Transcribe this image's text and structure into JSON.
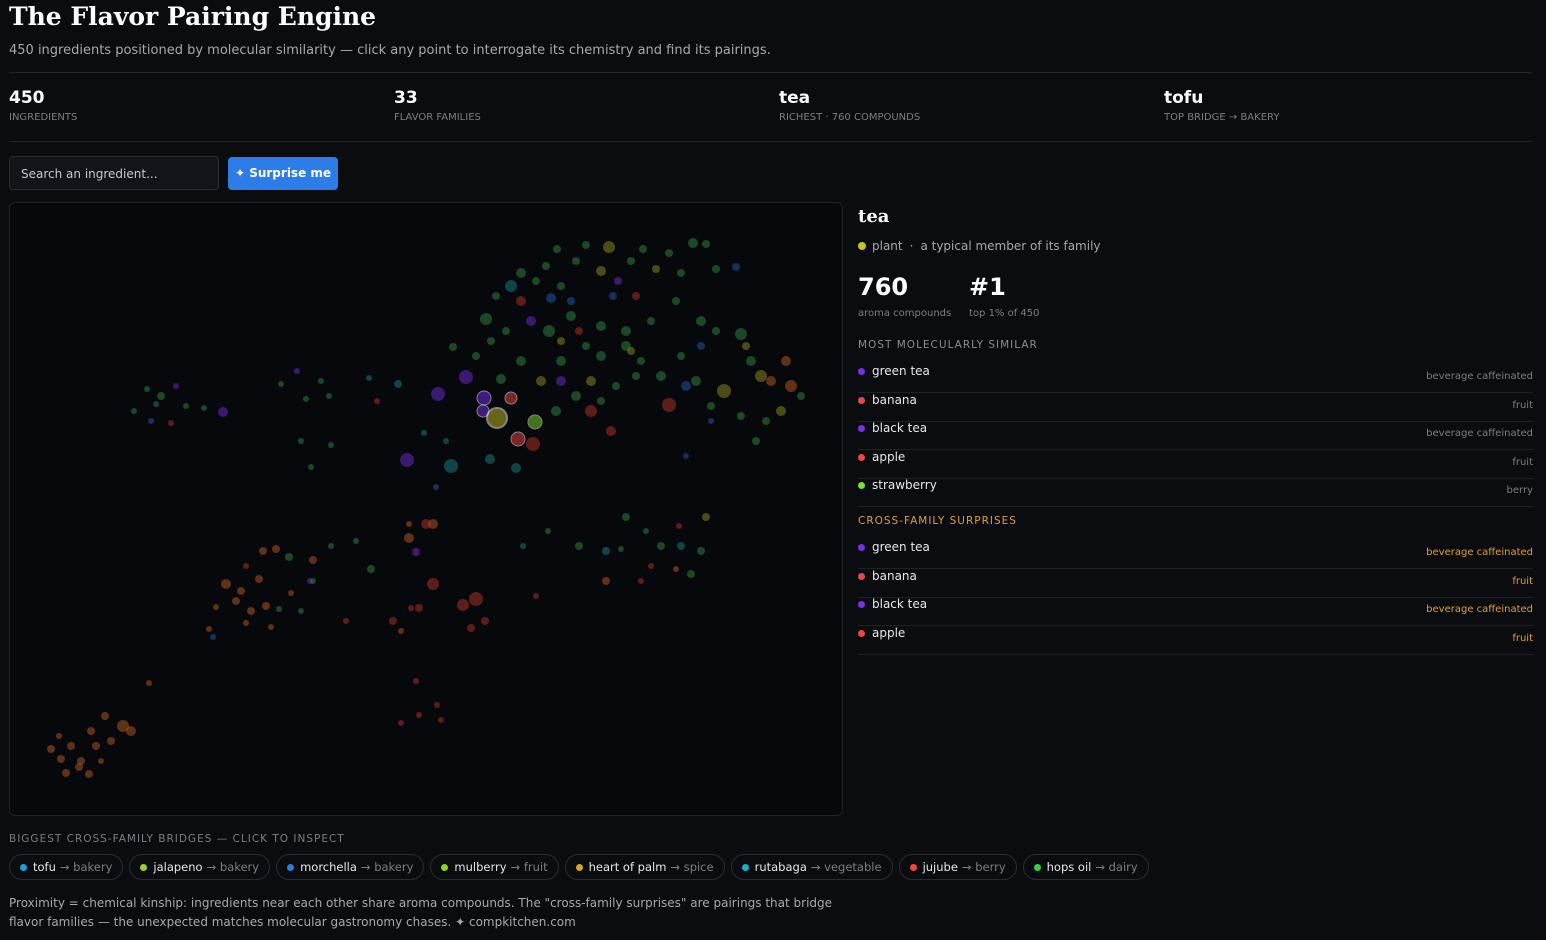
{
  "header": {
    "title": "The Flavor Pairing Engine",
    "subtitle": "450 ingredients positioned by molecular similarity — click any point to interrogate its chemistry and find its pairings."
  },
  "stats": [
    {
      "value": 450,
      "label": "INGREDIENTS"
    },
    {
      "value": 33,
      "label": "FLAVOR FAMILIES"
    },
    {
      "value": "tea",
      "label": "RICHEST · 760 COMPOUNDS"
    },
    {
      "value": "tofu",
      "label": "TOP BRIDGE → BAKERY"
    }
  ],
  "search": {
    "placeholder": "Search an ingredient...",
    "button": "✦ Surprise me"
  },
  "detail": {
    "name": "tea",
    "family": "plant",
    "family_color": "#c9c41c",
    "note": "a typical member of its family",
    "compounds": 760,
    "compounds_label": "aroma compounds",
    "rank": "#1",
    "rank_label": "top 1% of 450",
    "similar_title": "MOST MOLECULARLY SIMILAR",
    "similar": [
      {
        "name": "green tea",
        "family": "beverage caffeinated",
        "color": "#7a2ff0"
      },
      {
        "name": "banana",
        "family": "fruit",
        "color": "#f04545"
      },
      {
        "name": "black tea",
        "family": "beverage caffeinated",
        "color": "#7a2ff0"
      },
      {
        "name": "apple",
        "family": "fruit",
        "color": "#f04545"
      },
      {
        "name": "strawberry",
        "family": "berry",
        "color": "#7be02a"
      }
    ],
    "surprises_title": "CROSS-FAMILY SURPRISES",
    "surprises": [
      {
        "name": "green tea",
        "family": "beverage caffeinated",
        "color": "#7a2ff0"
      },
      {
        "name": "banana",
        "family": "fruit",
        "color": "#f04545"
      },
      {
        "name": "black tea",
        "family": "beverage caffeinated",
        "color": "#7a2ff0"
      },
      {
        "name": "apple",
        "family": "fruit",
        "color": "#f04545"
      }
    ]
  },
  "bridges": {
    "title": "BIGGEST CROSS-FAMILY BRIDGES — CLICK TO INSPECT",
    "items": [
      {
        "name": "tofu",
        "target": "→ bakery",
        "color": "#1ea0d8"
      },
      {
        "name": "jalapeno",
        "target": "→ bakery",
        "color": "#9ad21c"
      },
      {
        "name": "morchella",
        "target": "→ bakery",
        "color": "#2d7de0"
      },
      {
        "name": "mulberry",
        "target": "→ fruit",
        "color": "#8bd41c"
      },
      {
        "name": "heart of palm",
        "target": "→ spice",
        "color": "#d0a81c"
      },
      {
        "name": "rutabaga",
        "target": "→ vegetable",
        "color": "#1ab0c8"
      },
      {
        "name": "jujube",
        "target": "→ berry",
        "color": "#f04545"
      },
      {
        "name": "hops oil",
        "target": "→ dairy",
        "color": "#2ed24a"
      }
    ]
  },
  "footer": {
    "line1": "Proximity = chemical kinship: ingredients near each other share aroma compounds. The \"cross-family surprises\" are pairings that bridge",
    "line2": "flavor families — the unexpected matches molecular gastronomy chases. ✦ compkitchen.com"
  }
}
